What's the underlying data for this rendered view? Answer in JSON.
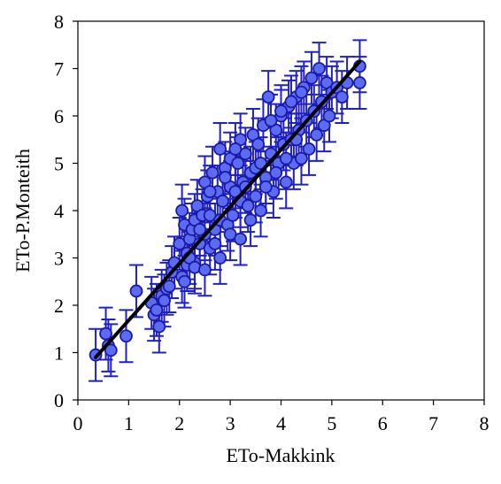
{
  "chart_data": {
    "type": "scatter",
    "title": "",
    "xlabel": "ETo-Makkink",
    "ylabel": "ETo-P.Monteith",
    "xlim": [
      0,
      8
    ],
    "ylim": [
      0,
      8
    ],
    "x_ticks": [
      "0",
      "1",
      "2",
      "3",
      "4",
      "5",
      "6",
      "7",
      "8"
    ],
    "y_ticks": [
      "0",
      "1",
      "2",
      "3",
      "4",
      "5",
      "6",
      "7",
      "8"
    ],
    "grid": false,
    "legend": "none",
    "colors": {
      "marker_fill": "#5b6cf2",
      "marker_edge": "#1a1aa6",
      "error_bar": "#2020c8",
      "trend_line": "#000000"
    },
    "trend_line": {
      "x": [
        0.35,
        5.55
      ],
      "y": [
        0.9,
        7.15
      ]
    },
    "error_bar_size": 0.55,
    "series": [
      {
        "x": [
          0.35,
          0.55,
          0.6,
          0.65,
          0.95,
          1.15,
          1.45,
          1.5,
          1.55,
          1.6,
          1.65,
          1.7,
          1.75,
          1.8,
          1.85,
          1.9,
          2.0,
          2.05,
          2.05,
          2.1,
          2.1,
          2.15,
          2.15,
          2.2,
          2.25,
          2.3,
          2.3,
          2.35,
          2.4,
          2.45,
          2.5,
          2.5,
          2.55,
          2.6,
          2.6,
          2.65,
          2.7,
          2.75,
          2.8,
          2.8,
          2.85,
          2.9,
          2.95,
          3.0,
          3.0,
          3.05,
          3.1,
          3.15,
          3.2,
          3.2,
          3.25,
          3.3,
          3.35,
          3.4,
          3.45,
          3.5,
          3.5,
          3.55,
          3.6,
          3.65,
          3.7,
          3.75,
          3.8,
          3.85,
          3.9,
          3.95,
          4.0,
          4.05,
          4.1,
          4.15,
          4.2,
          4.25,
          4.3,
          4.35,
          4.4,
          4.45,
          4.5,
          4.55,
          4.6,
          4.65,
          4.7,
          4.75,
          4.8,
          4.85,
          4.9,
          4.95,
          5.0,
          5.1,
          5.2,
          5.3,
          5.55,
          5.55,
          2.2,
          2.4,
          2.6,
          2.9,
          3.1,
          3.3,
          3.6,
          3.8,
          4.0,
          4.2,
          4.4,
          2.3,
          2.7,
          3.0,
          3.4,
          3.7,
          3.9,
          4.1,
          4.3,
          2.5,
          2.8,
          3.2
        ],
        "y": [
          0.95,
          1.4,
          1.15,
          1.05,
          1.35,
          2.3,
          2.05,
          1.8,
          1.9,
          1.55,
          2.2,
          2.1,
          2.35,
          2.4,
          2.7,
          2.9,
          3.3,
          4.0,
          2.6,
          3.7,
          2.5,
          3.1,
          2.85,
          3.4,
          3.6,
          3.8,
          2.9,
          4.1,
          3.3,
          3.9,
          4.6,
          3.5,
          4.3,
          3.2,
          3.9,
          4.8,
          3.6,
          4.4,
          5.3,
          3.8,
          4.2,
          4.9,
          3.7,
          4.5,
          5.1,
          3.9,
          4.4,
          5.0,
          4.2,
          5.5,
          4.6,
          5.2,
          4.1,
          4.8,
          5.6,
          4.3,
          4.9,
          5.4,
          4.0,
          5.8,
          4.7,
          6.4,
          5.2,
          4.4,
          5.7,
          5.0,
          6.0,
          5.4,
          4.6,
          6.2,
          5.5,
          5.0,
          6.4,
          5.7,
          5.1,
          6.6,
          5.9,
          5.3,
          6.8,
          6.1,
          5.6,
          7.0,
          6.3,
          5.8,
          6.7,
          6.0,
          6.5,
          6.6,
          6.4,
          6.7,
          7.05,
          6.7,
          3.0,
          3.6,
          4.4,
          4.7,
          5.3,
          4.5,
          5.0,
          5.9,
          6.1,
          6.3,
          6.5,
          2.8,
          3.3,
          3.5,
          3.8,
          4.5,
          4.8,
          5.1,
          5.5,
          2.75,
          3.0,
          3.4
        ]
      }
    ]
  }
}
